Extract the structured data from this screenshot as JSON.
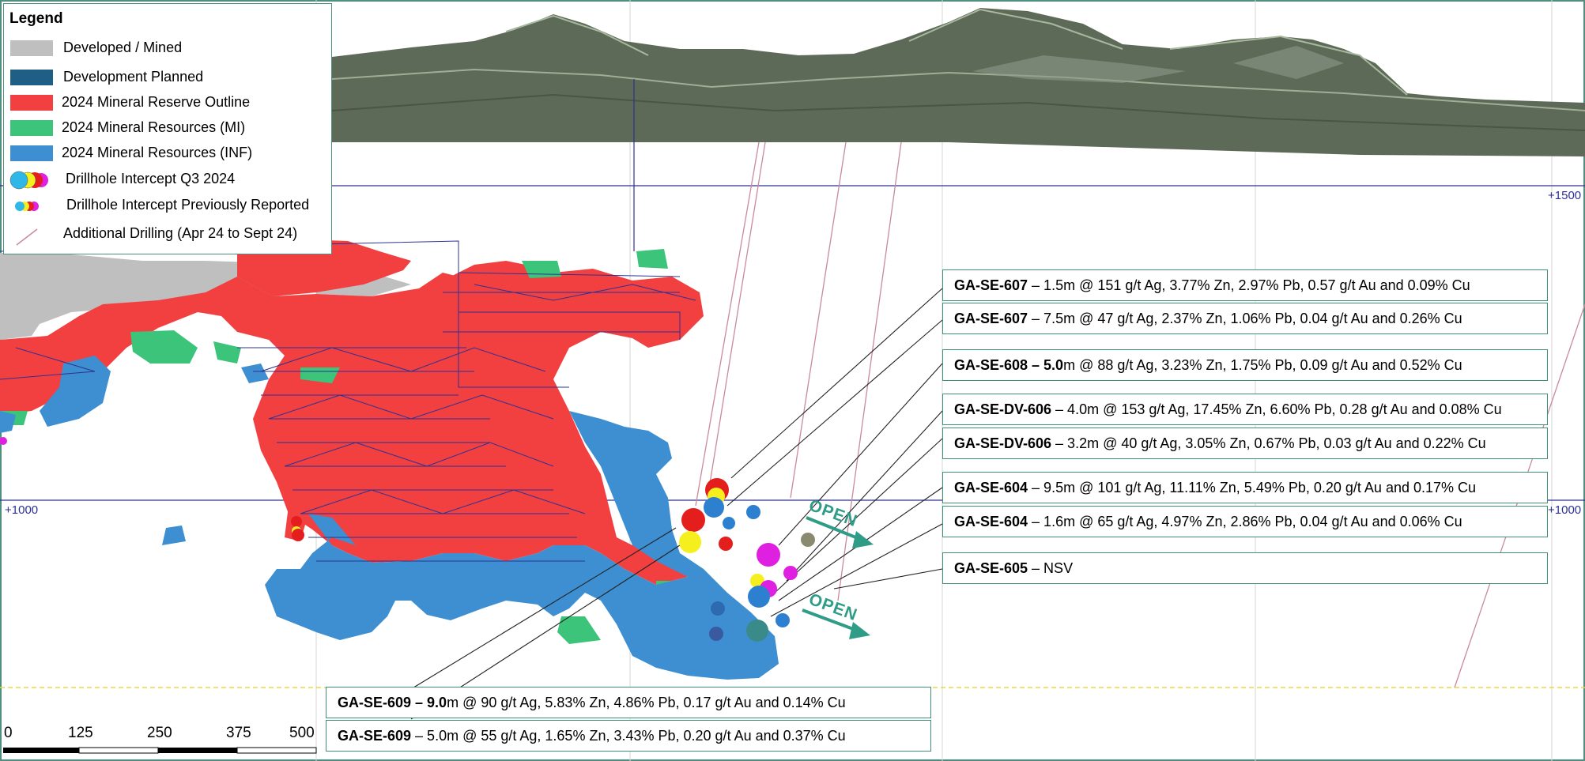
{
  "legend": {
    "title": "Legend",
    "items": [
      {
        "label": "Developed / Mined",
        "color": "#bfbfbf"
      },
      {
        "label": "Development Planned",
        "color": "#1f5f86"
      },
      {
        "label": "2024 Mineral Reserve Outline",
        "color": "#f24040"
      },
      {
        "label": "2024 Mineral Resources (MI)",
        "color": "#3cc47a"
      },
      {
        "label": "2024 Mineral Resources (INF)",
        "color": "#3d8fd1"
      },
      {
        "label": "Drillhole Intercept Q3 2024",
        "icon": "drillhole-intercept-q3-icon"
      },
      {
        "label": "Drillhole Intercept Previously Reported",
        "icon": "drillhole-intercept-previous-icon"
      },
      {
        "label": "Additional Drilling (Apr 24 to Sept 24)",
        "icon": "additional-drilling-icon"
      }
    ]
  },
  "elevations": {
    "upper_right": "+1500",
    "mid_right": "+1000",
    "mid_left": "+1000"
  },
  "open_labels": [
    "OPEN",
    "OPEN"
  ],
  "callouts": [
    {
      "hole": "GA-SE-607",
      "text": " – 1.5m @ 151 g/t Ag, 3.77% Zn, 2.97% Pb, 0.57 g/t Au and 0.09% Cu"
    },
    {
      "hole": "GA-SE-607",
      "text": " – 7.5m @ 47 g/t Ag, 2.37% Zn, 1.06% Pb, 0.04 g/t Au and 0.26% Cu"
    },
    {
      "hole": "GA-SE-608 – 5.0",
      "text": "m @ 88 g/t Ag, 3.23% Zn, 1.75% Pb, 0.09 g/t Au and 0.52% Cu"
    },
    {
      "hole": "GA-SE-DV-606",
      "text": " – 4.0m @ 153 g/t Ag, 17.45% Zn, 6.60% Pb, 0.28 g/t Au and 0.08% Cu"
    },
    {
      "hole": "GA-SE-DV-606",
      "text": " – 3.2m @ 40 g/t Ag, 3.05% Zn, 0.67% Pb, 0.03 g/t Au and 0.22% Cu"
    },
    {
      "hole": "GA-SE-604",
      "text": " – 9.5m @ 101 g/t Ag, 11.11% Zn, 5.49% Pb, 0.20 g/t Au and 0.17% Cu"
    },
    {
      "hole": "GA-SE-604",
      "text": " – 1.6m @ 65 g/t Ag, 4.97% Zn, 2.86% Pb, 0.04 g/t Au and 0.06% Cu"
    },
    {
      "hole": "GA-SE-605",
      "text": " –   NSV"
    },
    {
      "hole": "GA-SE-609 – 9.0",
      "text": "m @ 90 g/t Ag, 5.83% Zn, 4.86% Pb, 0.17 g/t Au and 0.14% Cu"
    },
    {
      "hole": "GA-SE-609",
      "text": " – 5.0m @ 55 g/t Ag, 1.65% Zn, 3.43% Pb, 0.20 g/t Au and 0.37% Cu"
    }
  ],
  "scale_bar": {
    "ticks": [
      "0",
      "125",
      "250",
      "375",
      "500"
    ]
  }
}
